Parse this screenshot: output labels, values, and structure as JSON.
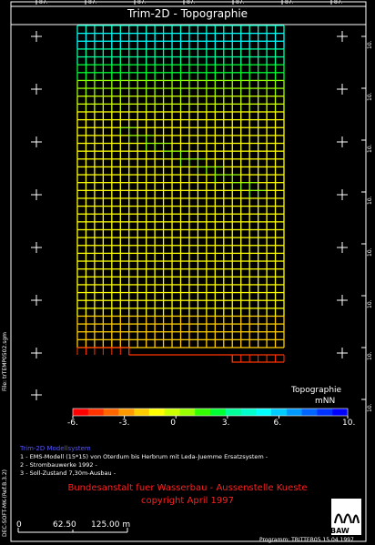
{
  "title": "Trim-2D - Topographie",
  "top_ticks": [
    "87.",
    "87.",
    "87.",
    "87.",
    "87.",
    "87.",
    "87."
  ],
  "right_ticks": [
    "10.",
    "10.",
    "10.",
    "10.",
    "10.",
    "10.",
    "10.",
    "10."
  ],
  "colorbar": {
    "title": "Topographie",
    "unit": "mNN",
    "ticks": [
      "-6.",
      "-3.",
      "0",
      "3.",
      "6.",
      "10."
    ],
    "colors": [
      "#ff0000",
      "#ff3300",
      "#ff6600",
      "#ff9900",
      "#ffcc00",
      "#ffff00",
      "#ccff00",
      "#99ff00",
      "#33ff00",
      "#00ff33",
      "#00ff99",
      "#00ffcc",
      "#00ffff",
      "#00ccff",
      "#0099ff",
      "#0066ff",
      "#0033ff",
      "#0000ff"
    ]
  },
  "legend": {
    "title": "Trim-2D Modellsystem",
    "items": [
      "1 - EMS-Modell (15*15) von Oterdum bis Herbrum mit Leda-Juemme Ersatzsystem -",
      "2 - Strombauwerke 1992 -",
      "3 - Soll-Zustand 7,30m-Ausbau -"
    ]
  },
  "institution": {
    "line1": "Bundesanstalt fuer Wasserbau - Aussenstelle Kueste",
    "line2": "copyright April 1997"
  },
  "scale_bar": {
    "labels": [
      "0",
      "62.50",
      "125.00 m"
    ]
  },
  "logo_text": "BAW",
  "left_vertical_1": "File: trTEMP0502.sgm",
  "left_vertical_2": "DEC-SOFT-MK-(Ref.B.3.2)",
  "program_text": "Programm: TRITTER05 15.04.1997"
}
